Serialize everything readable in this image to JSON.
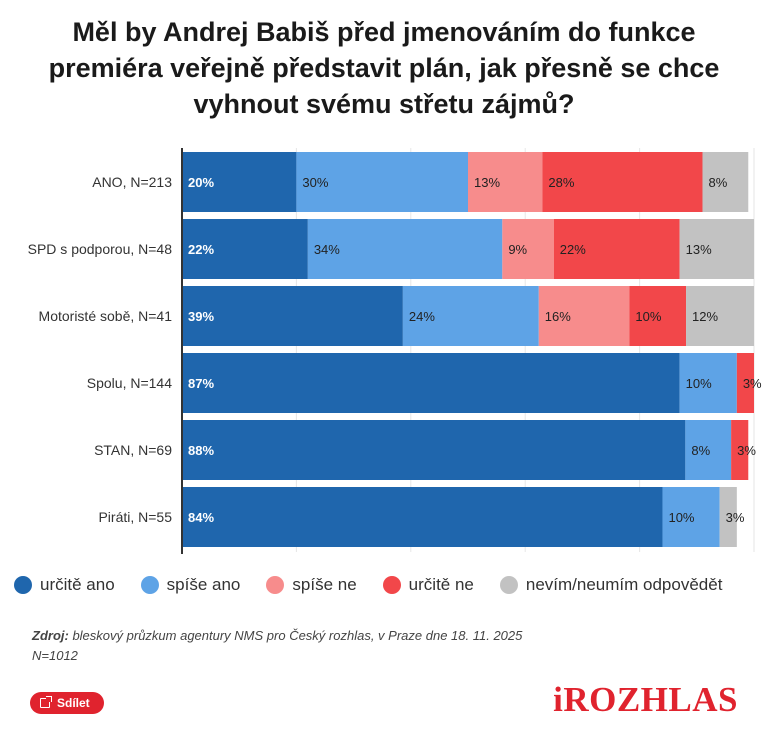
{
  "title_lines": [
    "Měl by Andrej Babiš před jmenováním do funkce",
    "premiéra veřejně představit plán, jak přesně se chce",
    "vyhnout svému střetu zájmů?"
  ],
  "chart_data": {
    "type": "bar",
    "orientation": "horizontal",
    "stacked": true,
    "categories": [
      "ANO, N=213",
      "SPD s podporou, N=48",
      "Motoristé sobě, N=41",
      "Spolu, N=144",
      "STAN, N=69",
      "Piráti, N=55"
    ],
    "series": [
      {
        "name": "určitě ano",
        "color": "#1f66ad",
        "values": [
          20,
          22,
          39,
          87,
          88,
          84
        ],
        "labels": [
          "20%",
          "22%",
          "39%",
          "87%",
          "88%",
          "84%"
        ]
      },
      {
        "name": "spíše ano",
        "color": "#5ea3e6",
        "values": [
          30,
          34,
          24,
          10,
          8,
          10
        ],
        "labels": [
          "30%",
          "34%",
          "24%",
          "10%",
          "8%",
          "10%"
        ]
      },
      {
        "name": "spíše ne",
        "color": "#f78c8c",
        "values": [
          13,
          9,
          16,
          0,
          0,
          0
        ],
        "labels": [
          "13%",
          "9%",
          "16%",
          "",
          "",
          ""
        ]
      },
      {
        "name": "určitě ne",
        "color": "#f2474a",
        "values": [
          28,
          22,
          10,
          3,
          3,
          0
        ],
        "labels": [
          "28%",
          "22%",
          "10%",
          "3%",
          "3%",
          ""
        ]
      },
      {
        "name": "nevím/neumím odpovědět",
        "color": "#c2c2c2",
        "values": [
          8,
          13,
          12,
          0,
          0,
          3
        ],
        "labels": [
          "8%",
          "13%",
          "12%",
          "",
          "",
          "3%"
        ]
      }
    ],
    "xlim": [
      0,
      100
    ],
    "grid": true,
    "legend_position": "bottom"
  },
  "source": {
    "label": "Zdroj:",
    "text": " bleskový průzkum agentury NMS pro Český rozhlas, v Praze dne 18. 11. 2025",
    "sample": "N=1012"
  },
  "share_label": "Sdílet",
  "logo_text": "iROZHLAS"
}
